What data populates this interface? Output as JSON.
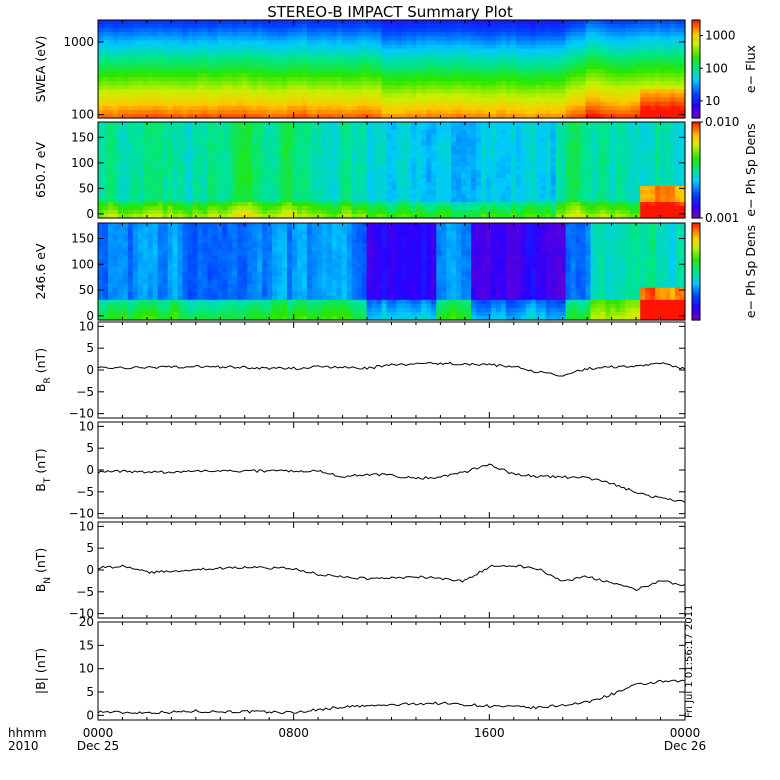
{
  "title": "STEREO-B IMPACT Summary Plot",
  "stamp": "Fri Jul 1 01:56:17 2011",
  "chart_data": [
    {
      "type": "heatmap",
      "ylabel": "SWEA (eV)",
      "y_scale": "log",
      "ylim": [
        90,
        2000
      ],
      "y_ticks": [
        100,
        1000
      ],
      "y_tick_labels": [
        "100",
        "1000"
      ],
      "colorbar_label": "e− Flux",
      "colorbar_scale": "log",
      "colorbar_range": [
        3,
        3000
      ],
      "colorbar_ticks": [
        10,
        100,
        1000
      ],
      "colorbar_tick_labels": [
        "10",
        "100",
        "1000"
      ]
    },
    {
      "type": "heatmap",
      "ylabel": "650.7 eV",
      "ylim": [
        -8,
        180
      ],
      "y_ticks": [
        0,
        50,
        100,
        150
      ],
      "y_tick_labels": [
        "0",
        "50",
        "100",
        "150"
      ],
      "colorbar_label": "e− Ph Sp Dens",
      "colorbar_scale": "log",
      "colorbar_range": [
        0.001,
        0.01
      ],
      "colorbar_ticks": [
        0.001,
        0.01
      ],
      "colorbar_tick_labels": [
        "0.001",
        "0.010"
      ]
    },
    {
      "type": "heatmap",
      "ylabel": "246.6 eV",
      "ylim": [
        -8,
        180
      ],
      "y_ticks": [
        0,
        50,
        100,
        150
      ],
      "y_tick_labels": [
        "0",
        "50",
        "100",
        "150"
      ],
      "colorbar_label": "e− Ph Sp Dens"
    },
    {
      "type": "line",
      "ylabel_main": "B",
      "ylabel_sub": "R",
      "ylabel_unit": " (nT)",
      "ylim": [
        -11,
        11
      ],
      "y_ticks": [
        -10,
        -5,
        0,
        5,
        10
      ],
      "y_tick_labels": [
        "−10",
        "−5",
        "0",
        "5",
        "10"
      ],
      "x": [
        0,
        1,
        2,
        3,
        4,
        5,
        6,
        7,
        8,
        9,
        10,
        11,
        12,
        13,
        14,
        15,
        16,
        17,
        18,
        19,
        20,
        21,
        22,
        23,
        24
      ],
      "y": [
        0.8,
        0.5,
        0.5,
        0.7,
        0.8,
        0.7,
        0.6,
        0.4,
        0.4,
        0.7,
        0.6,
        0.4,
        1.2,
        1.4,
        1.5,
        1.4,
        1.2,
        0.8,
        -0.5,
        -1.2,
        0.3,
        0.7,
        0.9,
        1.5,
        0.2
      ]
    },
    {
      "type": "line",
      "ylabel_main": "B",
      "ylabel_sub": "T",
      "ylabel_unit": " (nT)",
      "ylim": [
        -11,
        11
      ],
      "y_ticks": [
        -10,
        -5,
        0,
        5,
        10
      ],
      "y_tick_labels": [
        "−10",
        "−5",
        "0",
        "5",
        "10"
      ],
      "x": [
        0,
        1,
        2,
        3,
        4,
        5,
        6,
        7,
        8,
        9,
        10,
        11,
        12,
        13,
        14,
        15,
        16,
        17,
        18,
        19,
        20,
        21,
        22,
        23,
        24
      ],
      "y": [
        -0.5,
        -0.3,
        -0.4,
        -0.5,
        -0.2,
        -0.3,
        -0.3,
        -0.2,
        -0.2,
        -0.3,
        -1.5,
        -1.0,
        -1.2,
        -2.0,
        -1.5,
        -0.5,
        1.3,
        -1.0,
        -1.5,
        -1.6,
        -1.8,
        -3.0,
        -5.2,
        -6.5,
        -7.2
      ]
    },
    {
      "type": "line",
      "ylabel_main": "B",
      "ylabel_sub": "N",
      "ylabel_unit": " (nT)",
      "ylim": [
        -11,
        11
      ],
      "y_ticks": [
        -10,
        -5,
        0,
        5,
        10
      ],
      "y_tick_labels": [
        "−10",
        "−5",
        "0",
        "5",
        "10"
      ],
      "x": [
        0,
        1,
        2,
        3,
        4,
        5,
        6,
        7,
        8,
        9,
        10,
        11,
        12,
        13,
        14,
        15,
        16,
        17,
        18,
        19,
        20,
        21,
        22,
        23,
        24
      ],
      "y": [
        0.5,
        0.8,
        -0.5,
        -0.3,
        0.2,
        0.4,
        0.6,
        0.5,
        0.3,
        -1.0,
        -1.5,
        -2.0,
        -1.8,
        -1.5,
        -2.0,
        -2.5,
        0.8,
        1.0,
        0.3,
        -2.5,
        -1.5,
        -3.0,
        -4.5,
        -2.5,
        -3.5
      ]
    },
    {
      "type": "line",
      "ylabel": "|B| (nT)",
      "ylim": [
        -1,
        20
      ],
      "y_ticks": [
        0,
        5,
        10,
        15,
        20
      ],
      "y_tick_labels": [
        "0",
        "5",
        "10",
        "15",
        "20"
      ],
      "x": [
        0,
        1,
        2,
        3,
        4,
        5,
        6,
        7,
        8,
        9,
        10,
        11,
        12,
        13,
        14,
        15,
        16,
        17,
        18,
        19,
        20,
        21,
        22,
        23,
        24
      ],
      "y": [
        0.8,
        0.6,
        0.6,
        0.7,
        0.9,
        0.8,
        0.8,
        0.7,
        0.6,
        1.2,
        1.8,
        2.0,
        2.2,
        2.5,
        2.6,
        2.3,
        2.0,
        1.8,
        1.6,
        2.2,
        2.8,
        4.5,
        6.5,
        7.2,
        7.3
      ]
    }
  ],
  "x_axis": {
    "row1_labels": [
      "hhmm",
      "0000",
      "0800",
      "1600",
      "0000"
    ],
    "row2_labels": [
      "2010",
      "Dec 25",
      "Dec 26"
    ],
    "xlim": [
      0,
      24
    ],
    "major_ticks": [
      0,
      8,
      16,
      24
    ]
  }
}
